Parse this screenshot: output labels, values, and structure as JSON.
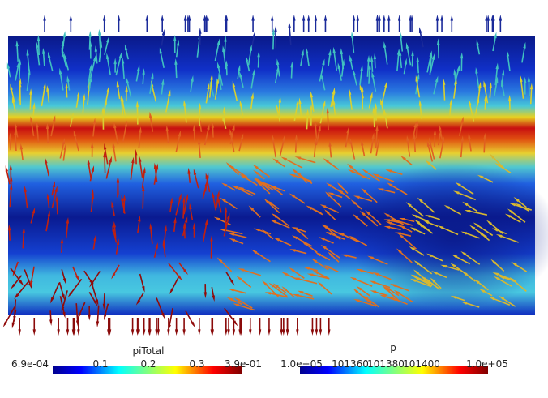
{
  "colorbars": [
    {
      "title": "piTotal",
      "ticks": [
        "6.9e-04",
        "0.1",
        "0.2",
        "0.3",
        "3.9e-01"
      ]
    },
    {
      "title": "p",
      "ticks": [
        "1.0e+05",
        "101360",
        "101380",
        "101400",
        "1.0e+05"
      ]
    }
  ]
}
